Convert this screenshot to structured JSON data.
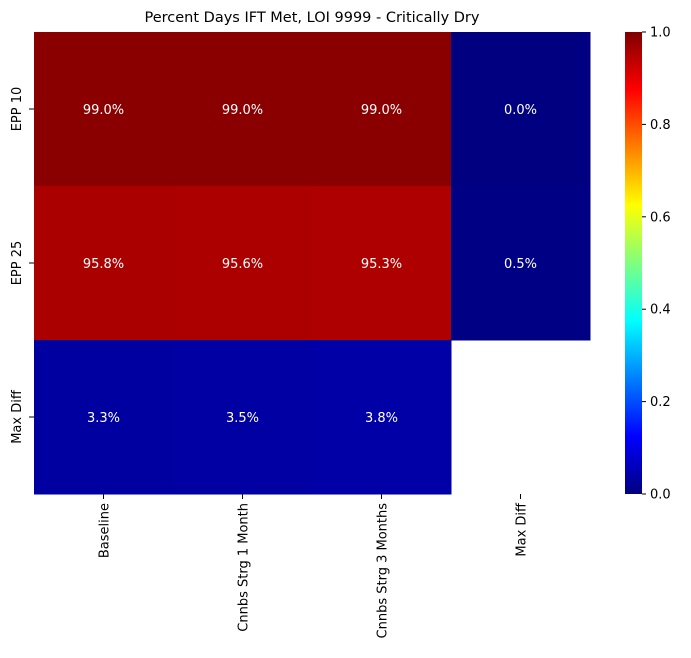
{
  "chart_data": {
    "type": "heatmap",
    "title": "Percent Days IFT Met, LOI 9999 - Critically Dry",
    "xlabel": "",
    "ylabel": "",
    "x_categories": [
      "Baseline",
      "Cnnbs Strg 1 Month",
      "Cnnbs Strg 3 Months",
      "Max Diff"
    ],
    "y_categories": [
      "EPP 10",
      "EPP 25",
      "Max Diff"
    ],
    "values": [
      [
        0.99,
        0.99,
        0.99,
        0.0
      ],
      [
        0.958,
        0.956,
        0.953,
        0.005
      ],
      [
        0.033,
        0.035,
        0.038,
        null
      ]
    ],
    "cell_labels": [
      [
        "99.0%",
        "99.0%",
        "99.0%",
        "0.0%"
      ],
      [
        "95.8%",
        "95.6%",
        "95.3%",
        "0.5%"
      ],
      [
        "3.3%",
        "3.5%",
        "3.8%",
        ""
      ]
    ],
    "colormap": "jet",
    "colorbar": {
      "vmin": 0.0,
      "vmax": 1.0,
      "ticks": [
        0.0,
        0.2,
        0.4,
        0.6,
        0.8,
        1.0
      ],
      "tick_labels": [
        "0.0",
        "0.2",
        "0.4",
        "0.6",
        "0.8",
        "1.0"
      ]
    },
    "annotation_color": "#ffffff",
    "grid": false,
    "legend": "colorbar-right"
  }
}
